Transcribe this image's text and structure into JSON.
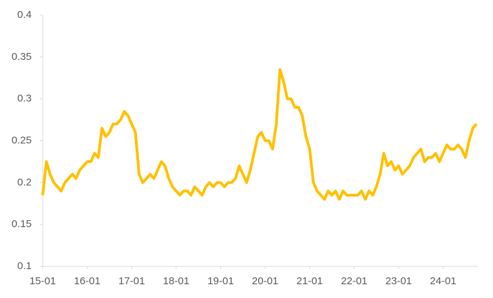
{
  "chart_data": {
    "type": "line",
    "x": [
      "15-01",
      "15-02",
      "15-03",
      "15-04",
      "15-05",
      "15-06",
      "15-07",
      "15-08",
      "15-09",
      "15-10",
      "15-11",
      "15-12",
      "16-01",
      "16-02",
      "16-03",
      "16-04",
      "16-05",
      "16-06",
      "16-07",
      "16-08",
      "16-09",
      "16-10",
      "16-11",
      "16-12",
      "17-01",
      "17-02",
      "17-03",
      "17-04",
      "17-05",
      "17-06",
      "17-07",
      "17-08",
      "17-09",
      "17-10",
      "17-11",
      "17-12",
      "18-01",
      "18-02",
      "18-03",
      "18-04",
      "18-05",
      "18-06",
      "18-07",
      "18-08",
      "18-09",
      "18-10",
      "18-11",
      "18-12",
      "19-01",
      "19-02",
      "19-03",
      "19-04",
      "19-05",
      "19-06",
      "19-07",
      "19-08",
      "19-09",
      "19-10",
      "19-11",
      "19-12",
      "20-01",
      "20-02",
      "20-03",
      "20-04",
      "20-05",
      "20-06",
      "20-07",
      "20-08",
      "20-09",
      "20-10",
      "20-11",
      "20-12",
      "21-01",
      "21-02",
      "21-03",
      "21-04",
      "21-05",
      "21-06",
      "21-07",
      "21-08",
      "21-09",
      "21-10",
      "21-11",
      "21-12",
      "22-01",
      "22-02",
      "22-03",
      "22-04",
      "22-05",
      "22-06",
      "22-07",
      "22-08",
      "22-09",
      "22-10",
      "22-11",
      "22-12",
      "23-01",
      "23-02",
      "23-03",
      "23-04",
      "23-05",
      "23-06",
      "23-07",
      "23-08",
      "23-09",
      "23-10",
      "23-11",
      "23-12",
      "24-01",
      "24-02",
      "24-03",
      "24-04",
      "24-05",
      "24-06",
      "24-07",
      "24-08",
      "24-09",
      "24-10"
    ],
    "series": [
      {
        "color": "#ffc000",
        "values": [
          0.185,
          0.225,
          0.21,
          0.2,
          0.195,
          0.19,
          0.2,
          0.205,
          0.21,
          0.205,
          0.215,
          0.22,
          0.225,
          0.225,
          0.235,
          0.23,
          0.265,
          0.255,
          0.26,
          0.27,
          0.27,
          0.275,
          0.285,
          0.28,
          0.27,
          0.26,
          0.21,
          0.2,
          0.205,
          0.21,
          0.205,
          0.215,
          0.225,
          0.22,
          0.205,
          0.195,
          0.19,
          0.185,
          0.19,
          0.19,
          0.185,
          0.195,
          0.19,
          0.185,
          0.195,
          0.2,
          0.195,
          0.2,
          0.2,
          0.195,
          0.2,
          0.2,
          0.205,
          0.22,
          0.21,
          0.2,
          0.215,
          0.235,
          0.255,
          0.26,
          0.25,
          0.25,
          0.24,
          0.27,
          0.335,
          0.32,
          0.3,
          0.3,
          0.29,
          0.29,
          0.28,
          0.255,
          0.24,
          0.2,
          0.19,
          0.185,
          0.18,
          0.19,
          0.185,
          0.19,
          0.18,
          0.19,
          0.185,
          0.185,
          0.185,
          0.185,
          0.19,
          0.18,
          0.19,
          0.185,
          0.195,
          0.21,
          0.235,
          0.22,
          0.225,
          0.215,
          0.22,
          0.21,
          0.215,
          0.22,
          0.23,
          0.235,
          0.24,
          0.225,
          0.23,
          0.23,
          0.235,
          0.225,
          0.235,
          0.245,
          0.24,
          0.24,
          0.245,
          0.24,
          0.23,
          0.25,
          0.265,
          0.27
        ]
      }
    ],
    "xticks": [
      "15-01",
      "16-01",
      "17-01",
      "18-01",
      "19-01",
      "20-01",
      "21-01",
      "22-01",
      "23-01",
      "24-01"
    ],
    "ylim": [
      0.1,
      0.4
    ],
    "yticks": [
      0.1,
      0.15,
      0.2,
      0.25,
      0.3,
      0.35,
      0.4
    ],
    "grid": false
  }
}
